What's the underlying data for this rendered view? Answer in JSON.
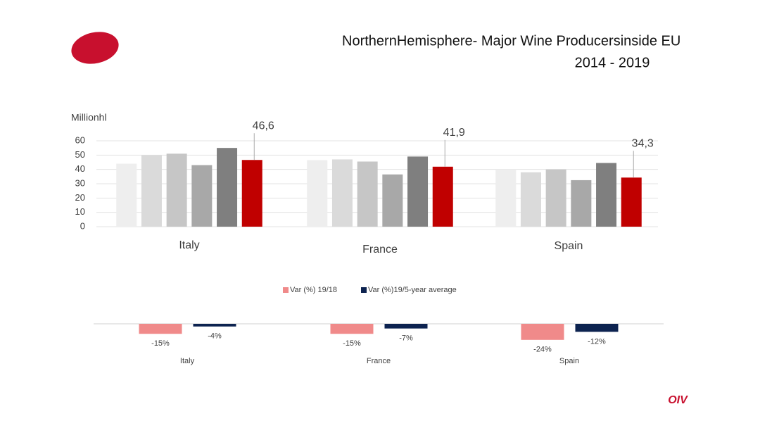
{
  "header": {
    "title": "NorthernHemisphere- Major Wine Producersinside EU",
    "subtitle": "2014 - 2019"
  },
  "logo": "OIV",
  "chart_data": [
    {
      "type": "bar",
      "y_label": "Millionhl",
      "categories": [
        "Italy",
        "France",
        "Spain"
      ],
      "series": [
        {
          "color": "#eeeeee",
          "values": [
            44,
            46.5,
            40
          ]
        },
        {
          "color": "#dadada",
          "values": [
            50,
            47,
            38
          ]
        },
        {
          "color": "#c6c6c6",
          "values": [
            51,
            45.5,
            40
          ]
        },
        {
          "color": "#a8a8a8",
          "values": [
            43,
            36.5,
            32.5
          ]
        },
        {
          "color": "#7f7f7f",
          "values": [
            55,
            49,
            44.5
          ]
        },
        {
          "color": "#c00000",
          "values": [
            46.6,
            41.9,
            34.3
          ],
          "value_labels": [
            "46,6",
            "41,9",
            "34,3"
          ]
        }
      ],
      "ylim": [
        0,
        60
      ],
      "yticks": [
        0,
        10,
        20,
        30,
        40,
        50,
        60
      ],
      "grid": true
    },
    {
      "type": "bar",
      "categories": [
        "Italy",
        "France",
        "Spain"
      ],
      "series": [
        {
          "name": "Var (%)  19/18",
          "color": "#f08a8a",
          "values": [
            -15,
            -15,
            -24
          ],
          "value_labels": [
            "-15%",
            "-15%",
            "-24%"
          ]
        },
        {
          "name": "Var (%)19/5-year  average",
          "color": "#0d2350",
          "values": [
            -4,
            -7,
            -12
          ],
          "value_labels": [
            "-4%",
            "-7%",
            "-12%"
          ]
        }
      ],
      "legend": "top"
    }
  ]
}
